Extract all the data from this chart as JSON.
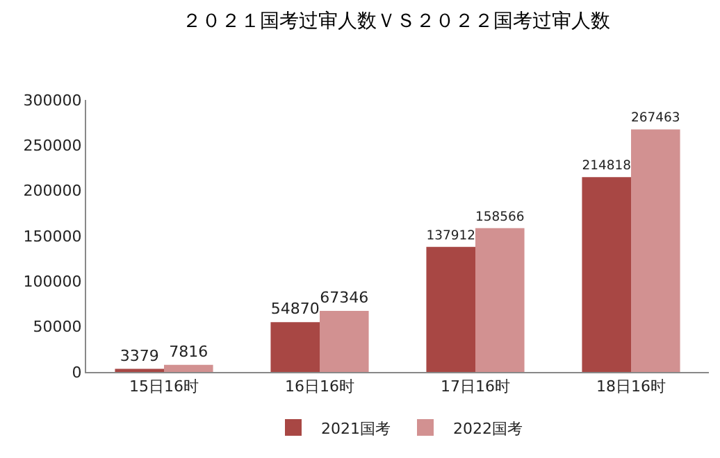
{
  "chart_data": {
    "type": "bar",
    "title": "２０２１国考过审人数ＶＳ２０２２国考过审人数",
    "categories": [
      "15日16时",
      "16日16时",
      "17日16时",
      "18日16时"
    ],
    "series": [
      {
        "name": "2021国考",
        "color": "#a84744",
        "values": [
          3379,
          54870,
          137912,
          214818
        ]
      },
      {
        "name": "2022国考",
        "color": "#d29191",
        "values": [
          7816,
          67346,
          158566,
          267463
        ]
      }
    ],
    "ylim": [
      0,
      300000
    ],
    "yticks": [
      0,
      50000,
      100000,
      150000,
      200000,
      250000,
      300000
    ],
    "grid": false,
    "legend": "bottom",
    "data_labels": true
  }
}
